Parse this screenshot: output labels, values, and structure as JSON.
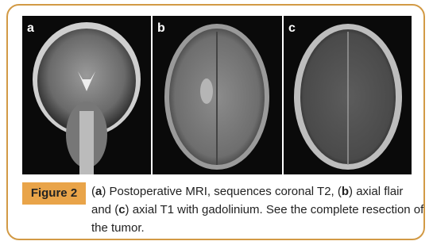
{
  "panels": [
    {
      "label": "a"
    },
    {
      "label": "b"
    },
    {
      "label": "c"
    }
  ],
  "figure_label": "Figure 2",
  "caption": [
    "(",
    "a",
    ") Postoperative MRI, sequences coronal T2, (",
    "b",
    ") axial flair and (",
    "c",
    ") axial T1 with gadolinium. See the complete resection of the tumor."
  ]
}
